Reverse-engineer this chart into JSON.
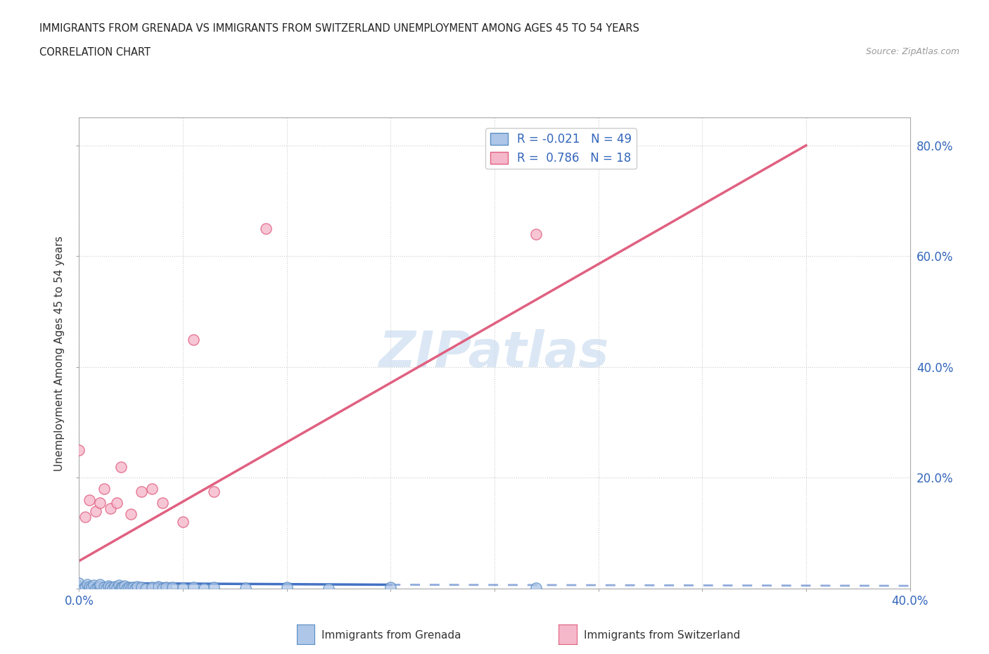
{
  "title_line1": "IMMIGRANTS FROM GRENADA VS IMMIGRANTS FROM SWITZERLAND UNEMPLOYMENT AMONG AGES 45 TO 54 YEARS",
  "title_line2": "CORRELATION CHART",
  "source_text": "Source: ZipAtlas.com",
  "ylabel": "Unemployment Among Ages 45 to 54 years",
  "xlim": [
    0.0,
    0.4
  ],
  "ylim": [
    0.0,
    0.85
  ],
  "grenada_color": "#aec6e8",
  "grenada_edge_color": "#5b8ec4",
  "switzerland_color": "#f5b8cb",
  "switzerland_edge_color": "#e06080",
  "grenada_line_color": "#4472c4",
  "switzerland_line_color": "#e06080",
  "R_grenada": -0.021,
  "N_grenada": 49,
  "R_switzerland": 0.786,
  "N_switzerland": 18,
  "grenada_x": [
    0.0,
    0.0,
    0.0,
    0.002,
    0.003,
    0.004,
    0.005,
    0.005,
    0.006,
    0.007,
    0.008,
    0.009,
    0.01,
    0.01,
    0.01,
    0.012,
    0.013,
    0.014,
    0.015,
    0.016,
    0.017,
    0.018,
    0.019,
    0.02,
    0.02,
    0.021,
    0.022,
    0.023,
    0.024,
    0.025,
    0.026,
    0.027,
    0.028,
    0.03,
    0.032,
    0.035,
    0.038,
    0.04,
    0.042,
    0.045,
    0.05,
    0.055,
    0.06,
    0.065,
    0.08,
    0.1,
    0.12,
    0.15,
    0.22
  ],
  "grenada_y": [
    0.0,
    0.005,
    0.01,
    0.0,
    0.003,
    0.008,
    0.0,
    0.004,
    0.002,
    0.006,
    0.0,
    0.003,
    0.0,
    0.004,
    0.008,
    0.002,
    0.0,
    0.005,
    0.003,
    0.0,
    0.004,
    0.001,
    0.006,
    0.0,
    0.003,
    0.002,
    0.005,
    0.0,
    0.003,
    0.001,
    0.002,
    0.0,
    0.004,
    0.003,
    0.0,
    0.002,
    0.004,
    0.0,
    0.003,
    0.002,
    0.001,
    0.003,
    0.0,
    0.002,
    0.001,
    0.003,
    0.0,
    0.002,
    0.001
  ],
  "switzerland_x": [
    0.0,
    0.003,
    0.005,
    0.008,
    0.01,
    0.012,
    0.015,
    0.018,
    0.02,
    0.025,
    0.03,
    0.035,
    0.04,
    0.05,
    0.055,
    0.065,
    0.09,
    0.22
  ],
  "switzerland_y": [
    0.25,
    0.13,
    0.16,
    0.14,
    0.155,
    0.18,
    0.145,
    0.155,
    0.22,
    0.135,
    0.175,
    0.18,
    0.155,
    0.12,
    0.45,
    0.175,
    0.65,
    0.64
  ],
  "switz_line_x0": 0.0,
  "switz_line_y0": 0.05,
  "switz_line_x1": 0.35,
  "switz_line_y1": 0.8,
  "gren_line_x0": 0.0,
  "gren_line_y0": 0.01,
  "gren_line_x1": 0.4,
  "gren_line_y1": 0.005,
  "watermark_text": "ZIPatlas",
  "watermark_color": "#ccddf0",
  "legend_label_grenada": "R = -0.021   N = 49",
  "legend_label_switzerland": "R =  0.786   N = 18",
  "bottom_label_grenada": "Immigrants from Grenada",
  "bottom_label_switzerland": "Immigrants from Switzerland"
}
